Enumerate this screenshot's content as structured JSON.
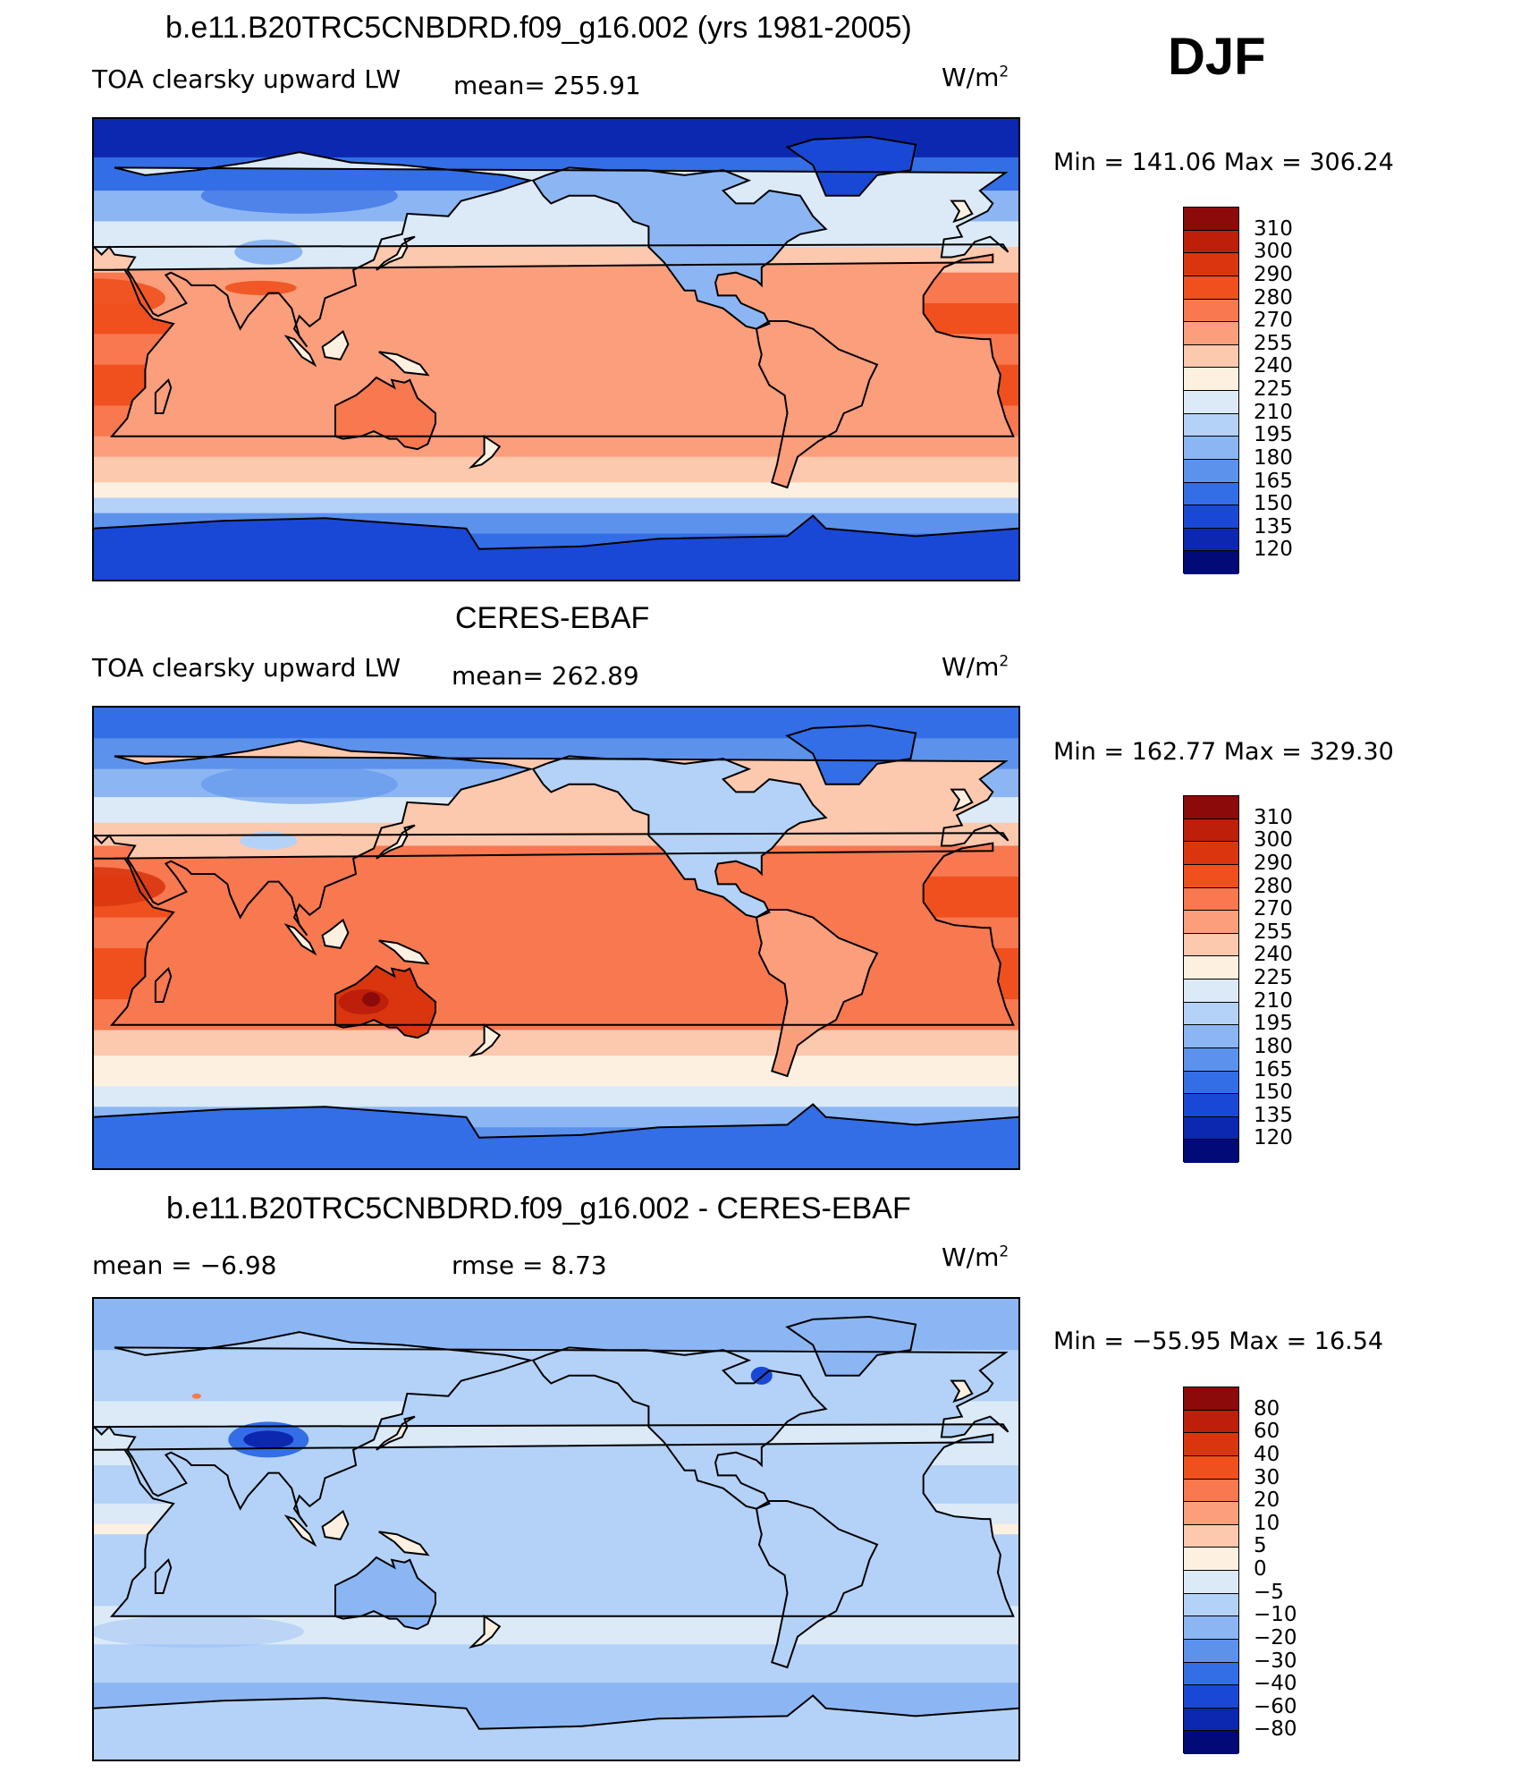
{
  "season": "DJF",
  "panels": [
    {
      "title": "b.e11.B20TRC5CNBDRD.f09_g16.002 (yrs 1981-2005)",
      "left_label": "TOA clearsky upward LW",
      "mid_label": "mean=  255.91",
      "units": "W/m",
      "units_exp": "2",
      "minmax": "Min  =  141.06  Max  =  306.24",
      "field": "model"
    },
    {
      "title": "CERES-EBAF",
      "left_label": "TOA clearsky upward LW",
      "mid_label": "mean=  262.89",
      "units": "W/m",
      "units_exp": "2",
      "minmax": "Min  =  162.77  Max  =  329.30",
      "field": "obs"
    },
    {
      "title": "b.e11.B20TRC5CNBDRD.f09_g16.002 - CERES-EBAF",
      "left_label": "mean  =     −6.98",
      "mid_label": "rmse  =      8.73",
      "units": "W/m",
      "units_exp": "2",
      "minmax": "Min  =  −55.95  Max  =     16.54",
      "field": "diff"
    }
  ],
  "colorbars": {
    "absolute": {
      "levels": [
        "310",
        "300",
        "290",
        "280",
        "270",
        "255",
        "240",
        "225",
        "210",
        "195",
        "180",
        "165",
        "150",
        "135",
        "120"
      ],
      "colors": [
        "#8c0a0a",
        "#bd1f0a",
        "#d9360f",
        "#f0501e",
        "#f87850",
        "#fa9e7c",
        "#fcc8ae",
        "#fdf0e1",
        "#dceaf8",
        "#b4d2f7",
        "#8cb6f3",
        "#5c92ec",
        "#346ee6",
        "#1a48d6",
        "#0c28b0",
        "#020a78"
      ]
    },
    "difference": {
      "levels": [
        "80",
        "60",
        "40",
        "30",
        "20",
        "10",
        "5",
        "0",
        "−5",
        "−10",
        "−20",
        "−30",
        "−40",
        "−60",
        "−80"
      ],
      "colors": [
        "#8c0a0a",
        "#bd1f0a",
        "#d9360f",
        "#f0501e",
        "#f87850",
        "#fa9e7c",
        "#fcc8ae",
        "#fdf0e1",
        "#dceaf8",
        "#b4d2f7",
        "#8cb6f3",
        "#5c92ec",
        "#346ee6",
        "#1a48d6",
        "#0c28b0",
        "#020a78"
      ]
    }
  }
}
